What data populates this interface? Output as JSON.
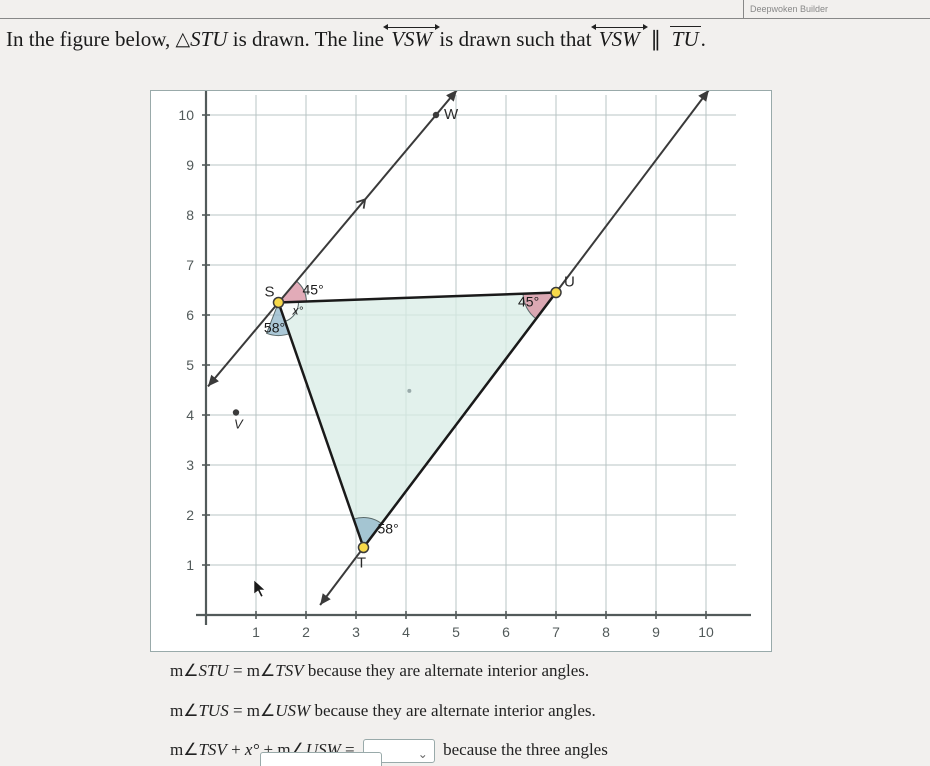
{
  "topbar": {
    "label": "Deepwoken Builder"
  },
  "prompt": {
    "part1": "In the figure below, ",
    "tri": "△",
    "triLabel": "STU",
    "part2": " is drawn. The line ",
    "line1": "VSW",
    "part3": " is drawn such that ",
    "line2": "VSW",
    "seg": "TU",
    "period": "."
  },
  "grid": {
    "background": "#ffffff",
    "gridColor": "#b8c4c4",
    "axisColor": "#525a5a",
    "xmin": 0,
    "xmax": 10.8,
    "ymin": 0,
    "ymax": 10.8,
    "cell": 50,
    "originX": 55,
    "originY": 524,
    "xticks": [
      1,
      2,
      3,
      4,
      5,
      6,
      7,
      8,
      9,
      10
    ],
    "yticks": [
      1,
      2,
      3,
      4,
      5,
      6,
      7,
      8,
      9,
      10
    ],
    "tickFont": 14,
    "tickColor": "#525a5a"
  },
  "points": {
    "S": {
      "x": 1.45,
      "y": 6.25,
      "label": "S"
    },
    "T": {
      "x": 3.15,
      "y": 1.35,
      "label": "T"
    },
    "U": {
      "x": 7.0,
      "y": 6.45,
      "label": "U"
    },
    "V": {
      "x": 0.6,
      "y": 4.05,
      "label": "V"
    },
    "W": {
      "x": 4.6,
      "y": 10.0,
      "label": "W"
    }
  },
  "lineVSW": {
    "extendLow": 2.4,
    "extendHigh": 10.5,
    "color": "#3a3a3a",
    "width": 2
  },
  "lineTU": {
    "extendLowX": 1.0,
    "extendHighX": 9.6,
    "color": "#3a3a3a",
    "width": 2
  },
  "triangle": {
    "fill": "#d8ece6",
    "fillOpacity": 0.75,
    "stroke": "#1a1a1a",
    "strokeWidth": 2.5
  },
  "parallelTick": {
    "size": 8,
    "color": "#3a3a3a"
  },
  "angles": {
    "S_upper": {
      "label": "45°",
      "color": "#d88fa0",
      "radius": 28
    },
    "S_x": {
      "label": "x°",
      "color": "#ffffff",
      "radius": 20
    },
    "S_lower": {
      "label": "58°",
      "color": "#8fb6c9",
      "radius": 33
    },
    "T": {
      "label": "58°",
      "color": "#8fb6c9",
      "radius": 30
    },
    "U": {
      "label": "45°",
      "color": "#d88fa0",
      "radius": 33
    }
  },
  "pointStyle": {
    "radius": 5,
    "fill": "#f7d94a",
    "stroke": "#3a3a3a",
    "strokeWidth": 1.5
  },
  "vPoint": {
    "radius": 3.2,
    "fill": "#3a3a3a"
  },
  "labels": {
    "font": 15,
    "color": "#2a2a2a"
  },
  "angleLabelFont": 14,
  "statements": {
    "line1a": "m∠",
    "line1b": "STU",
    "line1c": " = m∠",
    "line1d": "TSV",
    "line1e": " because they are alternate interior angles.",
    "line2a": "m∠",
    "line2b": "TUS",
    "line2c": " = m∠",
    "line2d": "USW",
    "line2e": " because they are alternate interior angles.",
    "line3a": "m∠",
    "line3b": "TSV",
    "line3c": " + ",
    "line3x": "x°",
    "line3d": " + m∠",
    "line3e": "USW",
    "line3f": " = ",
    "line3g": " because the three angles"
  }
}
